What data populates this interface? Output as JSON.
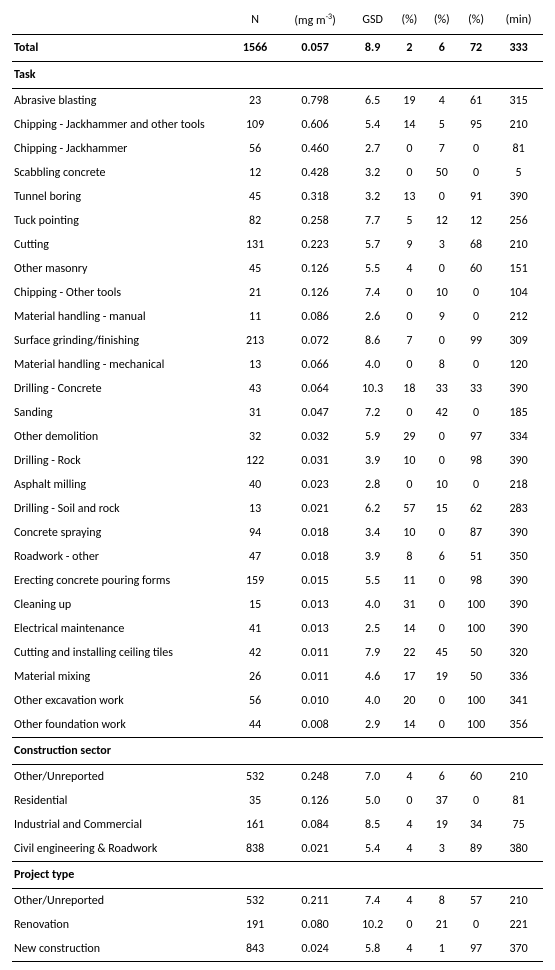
{
  "headers": {
    "n": "N",
    "gm_unit": "(mg m",
    "gm_sup": "-3",
    "gm_close": ")",
    "gsd": "GSD",
    "pct": "(%)",
    "min": "(min)"
  },
  "total": {
    "label": "Total",
    "n": "1566",
    "gm": "0.057",
    "gsd": "8.9",
    "p1": "2",
    "p2": "6",
    "p3": "72",
    "min": "333"
  },
  "sections": [
    {
      "title": "Task",
      "rows": [
        {
          "label": "Abrasive blasting",
          "n": "23",
          "gm": "0.798",
          "gsd": "6.5",
          "p1": "19",
          "p2": "4",
          "p3": "61",
          "min": "315"
        },
        {
          "label": "Chipping - Jackhammer and other tools",
          "n": "109",
          "gm": "0.606",
          "gsd": "5.4",
          "p1": "14",
          "p2": "5",
          "p3": "95",
          "min": "210"
        },
        {
          "label": "Chipping - Jackhammer",
          "n": "56",
          "gm": "0.460",
          "gsd": "2.7",
          "p1": "0",
          "p2": "7",
          "p3": "0",
          "min": "81"
        },
        {
          "label": "Scabbling concrete",
          "n": "12",
          "gm": "0.428",
          "gsd": "3.2",
          "p1": "0",
          "p2": "50",
          "p3": "0",
          "min": "5"
        },
        {
          "label": "Tunnel boring",
          "n": "45",
          "gm": "0.318",
          "gsd": "3.2",
          "p1": "13",
          "p2": "0",
          "p3": "91",
          "min": "390"
        },
        {
          "label": "Tuck pointing",
          "n": "82",
          "gm": "0.258",
          "gsd": "7.7",
          "p1": "5",
          "p2": "12",
          "p3": "12",
          "min": "256"
        },
        {
          "label": "Cutting",
          "n": "131",
          "gm": "0.223",
          "gsd": "5.7",
          "p1": "9",
          "p2": "3",
          "p3": "68",
          "min": "210"
        },
        {
          "label": "Other masonry",
          "n": "45",
          "gm": "0.126",
          "gsd": "5.5",
          "p1": "4",
          "p2": "0",
          "p3": "60",
          "min": "151"
        },
        {
          "label": "Chipping - Other tools",
          "n": "21",
          "gm": "0.126",
          "gsd": "7.4",
          "p1": "0",
          "p2": "10",
          "p3": "0",
          "min": "104"
        },
        {
          "label": "Material handling - manual",
          "n": "11",
          "gm": "0.086",
          "gsd": "2.6",
          "p1": "0",
          "p2": "9",
          "p3": "0",
          "min": "212"
        },
        {
          "label": "Surface grinding/finishing",
          "n": "213",
          "gm": "0.072",
          "gsd": "8.6",
          "p1": "7",
          "p2": "0",
          "p3": "99",
          "min": "309"
        },
        {
          "label": "Material handling - mechanical",
          "n": "13",
          "gm": "0.066",
          "gsd": "4.0",
          "p1": "0",
          "p2": "8",
          "p3": "0",
          "min": "120"
        },
        {
          "label": "Drilling - Concrete",
          "n": "43",
          "gm": "0.064",
          "gsd": "10.3",
          "p1": "18",
          "p2": "33",
          "p3": "33",
          "min": "390"
        },
        {
          "label": "Sanding",
          "n": "31",
          "gm": "0.047",
          "gsd": "7.2",
          "p1": "0",
          "p2": "42",
          "p3": "0",
          "min": "185"
        },
        {
          "label": "Other demolition",
          "n": "32",
          "gm": "0.032",
          "gsd": "5.9",
          "p1": "29",
          "p2": "0",
          "p3": "97",
          "min": "334"
        },
        {
          "label": "Drilling - Rock",
          "n": "122",
          "gm": "0.031",
          "gsd": "3.9",
          "p1": "10",
          "p2": "0",
          "p3": "98",
          "min": "390"
        },
        {
          "label": "Asphalt milling",
          "n": "40",
          "gm": "0.023",
          "gsd": "2.8",
          "p1": "0",
          "p2": "10",
          "p3": "0",
          "min": "218"
        },
        {
          "label": "Drilling - Soil and rock",
          "n": "13",
          "gm": "0.021",
          "gsd": "6.2",
          "p1": "57",
          "p2": "15",
          "p3": "62",
          "min": "283"
        },
        {
          "label": "Concrete spraying",
          "n": "94",
          "gm": "0.018",
          "gsd": "3.4",
          "p1": "10",
          "p2": "0",
          "p3": "87",
          "min": "390"
        },
        {
          "label": "Roadwork - other",
          "n": "47",
          "gm": "0.018",
          "gsd": "3.9",
          "p1": "8",
          "p2": "6",
          "p3": "51",
          "min": "350"
        },
        {
          "label": "Erecting concrete pouring forms",
          "n": "159",
          "gm": "0.015",
          "gsd": "5.5",
          "p1": "11",
          "p2": "0",
          "p3": "98",
          "min": "390"
        },
        {
          "label": "Cleaning up",
          "n": "15",
          "gm": "0.013",
          "gsd": "4.0",
          "p1": "31",
          "p2": "0",
          "p3": "100",
          "min": "390"
        },
        {
          "label": "Electrical maintenance",
          "n": "41",
          "gm": "0.013",
          "gsd": "2.5",
          "p1": "14",
          "p2": "0",
          "p3": "100",
          "min": "390"
        },
        {
          "label": "Cutting and installing ceiling tiles",
          "n": "42",
          "gm": "0.011",
          "gsd": "7.9",
          "p1": "22",
          "p2": "45",
          "p3": "50",
          "min": "320"
        },
        {
          "label": "Material mixing",
          "n": "26",
          "gm": "0.011",
          "gsd": "4.6",
          "p1": "17",
          "p2": "19",
          "p3": "50",
          "min": "336"
        },
        {
          "label": "Other excavation work",
          "n": "56",
          "gm": "0.010",
          "gsd": "4.0",
          "p1": "20",
          "p2": "0",
          "p3": "100",
          "min": "341"
        },
        {
          "label": "Other foundation work",
          "n": "44",
          "gm": "0.008",
          "gsd": "2.9",
          "p1": "14",
          "p2": "0",
          "p3": "100",
          "min": "356"
        }
      ]
    },
    {
      "title": "Construction sector",
      "rows": [
        {
          "label": "Other/Unreported",
          "n": "532",
          "gm": "0.248",
          "gsd": "7.0",
          "p1": "4",
          "p2": "6",
          "p3": "60",
          "min": "210"
        },
        {
          "label": "Residential",
          "n": "35",
          "gm": "0.126",
          "gsd": "5.0",
          "p1": "0",
          "p2": "37",
          "p3": "0",
          "min": "81"
        },
        {
          "label": "Industrial and Commercial",
          "n": "161",
          "gm": "0.084",
          "gsd": "8.5",
          "p1": "4",
          "p2": "19",
          "p3": "34",
          "min": "75"
        },
        {
          "label": "Civil engineering & Roadwork",
          "n": "838",
          "gm": "0.021",
          "gsd": "5.4",
          "p1": "4",
          "p2": "3",
          "p3": "89",
          "min": "380"
        }
      ]
    },
    {
      "title": "Project type",
      "rows": [
        {
          "label": "Other/Unreported",
          "n": "532",
          "gm": "0.211",
          "gsd": "7.4",
          "p1": "4",
          "p2": "8",
          "p3": "57",
          "min": "210"
        },
        {
          "label": "Renovation",
          "n": "191",
          "gm": "0.080",
          "gsd": "10.2",
          "p1": "0",
          "p2": "21",
          "p3": "0",
          "min": "221"
        },
        {
          "label": "New construction",
          "n": "843",
          "gm": "0.024",
          "gsd": "5.8",
          "p1": "4",
          "p2": "1",
          "p3": "97",
          "min": "370"
        }
      ]
    }
  ]
}
